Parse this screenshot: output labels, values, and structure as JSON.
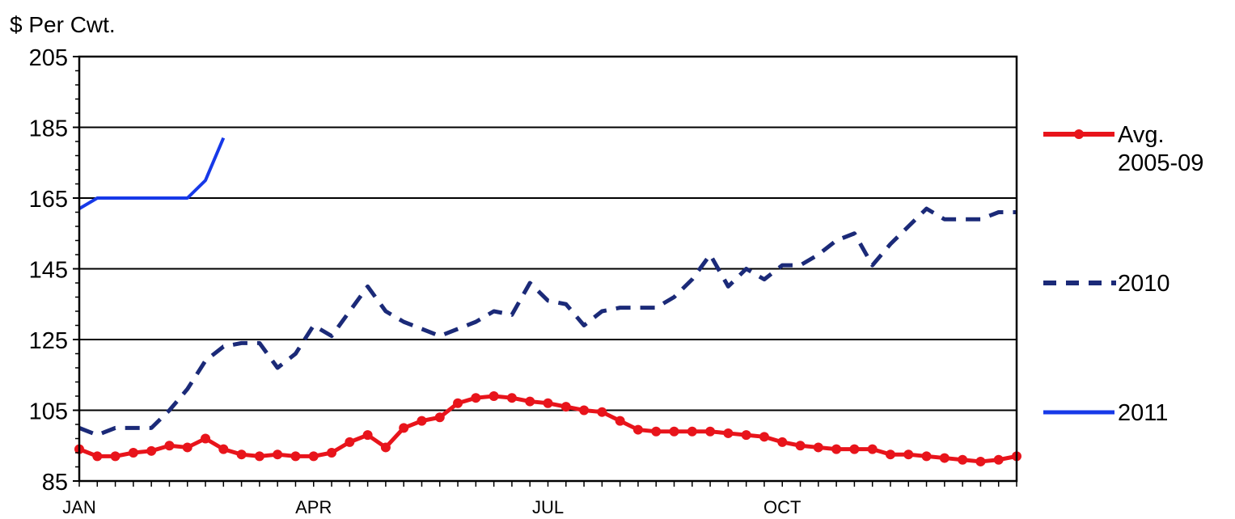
{
  "chart_data": {
    "type": "line",
    "ylabel": "$ Per Cwt.",
    "ylim": [
      85,
      205
    ],
    "yticks": [
      85,
      105,
      125,
      145,
      165,
      185,
      205
    ],
    "xlim": [
      1,
      53
    ],
    "x_tick_labels": [
      {
        "label": "JAN",
        "x": 1
      },
      {
        "label": "APR",
        "x": 14
      },
      {
        "label": "JUL",
        "x": 27
      },
      {
        "label": "OCT",
        "x": 40
      }
    ],
    "grid": "horizontal",
    "legend_position": "right",
    "series": [
      {
        "name": "Avg. 2005-09",
        "color": "#e8141b",
        "style": "solid-markers",
        "x": [
          1,
          2,
          3,
          4,
          5,
          6,
          7,
          8,
          9,
          10,
          11,
          12,
          13,
          14,
          15,
          16,
          17,
          18,
          19,
          20,
          21,
          22,
          23,
          24,
          25,
          26,
          27,
          28,
          29,
          30,
          31,
          32,
          33,
          34,
          35,
          36,
          37,
          38,
          39,
          40,
          41,
          42,
          43,
          44,
          45,
          46,
          47,
          48,
          49,
          50,
          51,
          52,
          53
        ],
        "values": [
          94,
          92,
          92,
          93,
          93.5,
          95,
          94.5,
          97,
          94,
          92.5,
          92,
          92.5,
          92,
          92,
          93,
          96,
          98,
          94.5,
          100,
          102,
          103,
          107,
          108.5,
          109,
          108.5,
          107.5,
          107,
          106,
          105,
          104.5,
          102,
          99.5,
          99,
          99,
          99,
          99,
          98.5,
          98,
          97.5,
          96,
          95,
          94.5,
          94,
          94,
          94,
          92.5,
          92.5,
          92,
          91.5,
          91,
          90.5,
          91,
          92
        ]
      },
      {
        "name": "2010",
        "color": "#1b2a78",
        "style": "dashed",
        "x": [
          1,
          2,
          3,
          4,
          5,
          6,
          7,
          8,
          9,
          10,
          11,
          12,
          13,
          14,
          15,
          16,
          17,
          18,
          19,
          20,
          21,
          22,
          23,
          24,
          25,
          26,
          27,
          28,
          29,
          30,
          31,
          32,
          33,
          34,
          35,
          36,
          37,
          38,
          39,
          40,
          41,
          42,
          43,
          44,
          45,
          46,
          47,
          48,
          49,
          50,
          51,
          52,
          53
        ],
        "values": [
          100,
          98,
          100,
          100,
          100,
          105,
          111,
          119,
          123,
          124,
          124,
          117,
          121,
          129,
          126,
          133,
          140,
          133,
          130,
          128,
          126,
          128,
          130,
          133,
          132,
          141,
          136,
          135,
          129,
          133,
          134,
          134,
          134,
          137,
          142,
          149,
          140,
          145,
          142,
          146,
          146,
          149,
          153,
          155,
          146,
          152,
          157,
          162,
          159,
          159,
          159,
          161,
          161
        ]
      },
      {
        "name": "2011",
        "color": "#1739e8",
        "style": "solid",
        "x": [
          1,
          2,
          3,
          4,
          5,
          6,
          7,
          8,
          9
        ],
        "values": [
          162,
          165,
          165,
          165,
          165,
          165,
          165,
          170,
          182
        ]
      }
    ]
  }
}
